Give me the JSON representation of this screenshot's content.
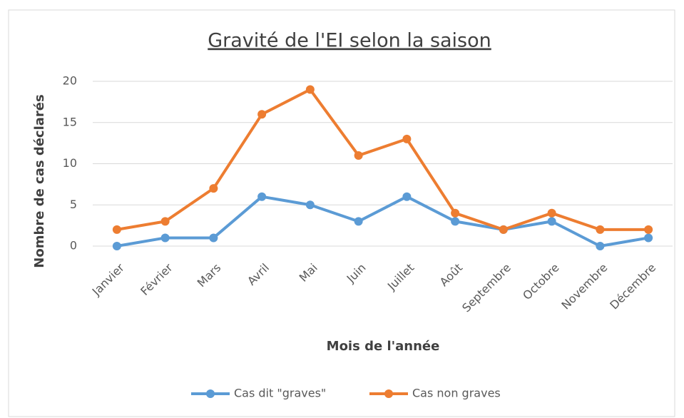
{
  "chart_data": {
    "type": "line",
    "title": "Gravité de l'EI selon la saison",
    "x_label": "Mois de l'année",
    "y_label": "Nombre de cas déclarés",
    "categories": [
      "Janvier",
      "Février",
      "Mars",
      "Avril",
      "Mai",
      "Juin",
      "Juillet",
      "Août",
      "Septembre",
      "Octobre",
      "Novembre",
      "Décembre"
    ],
    "series": [
      {
        "name": "Cas dit \"graves\"",
        "color": "#5b9bd5",
        "values": [
          0,
          1,
          1,
          6,
          5,
          3,
          6,
          3,
          2,
          3,
          0,
          1
        ]
      },
      {
        "name": "Cas non graves",
        "color": "#ed7d31",
        "values": [
          2,
          3,
          7,
          16,
          19,
          11,
          13,
          4,
          2,
          4,
          2,
          2
        ]
      }
    ],
    "ylim": [
      0,
      20
    ],
    "yticks": [
      0,
      5,
      10,
      15,
      20
    ],
    "grid": true,
    "legend": "bottom"
  }
}
